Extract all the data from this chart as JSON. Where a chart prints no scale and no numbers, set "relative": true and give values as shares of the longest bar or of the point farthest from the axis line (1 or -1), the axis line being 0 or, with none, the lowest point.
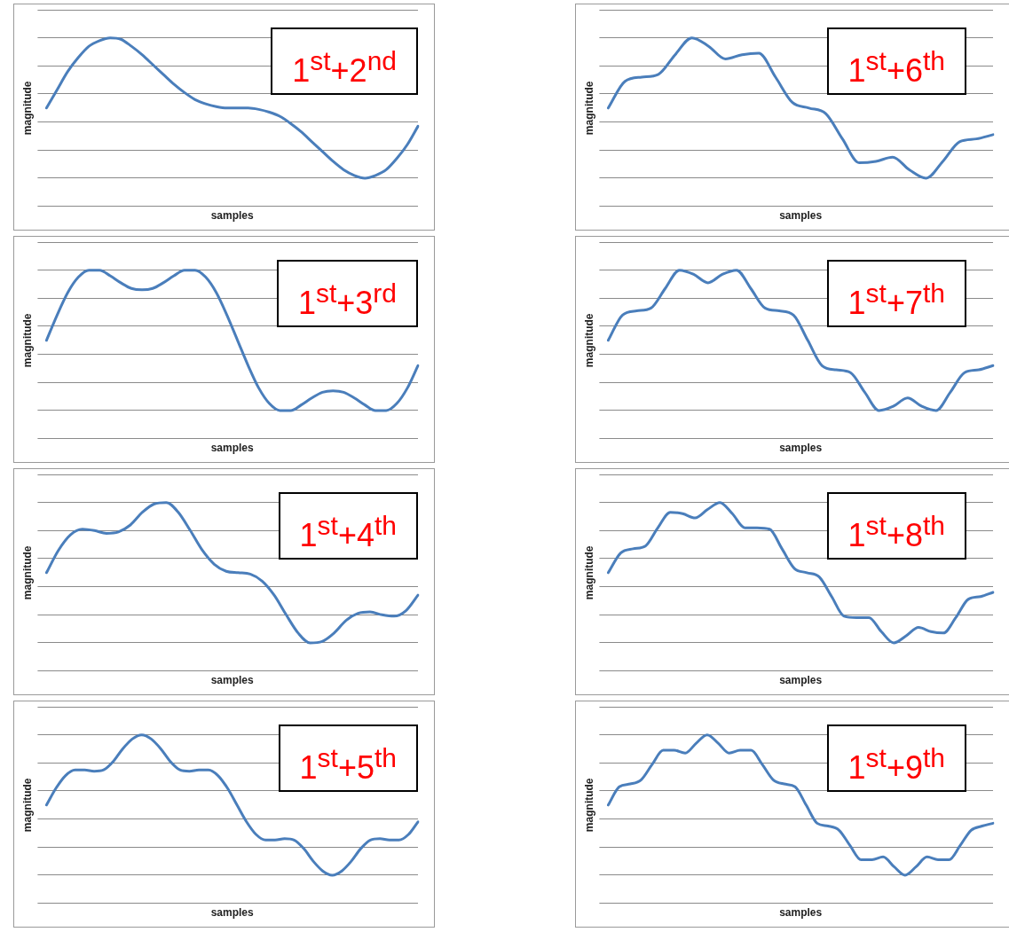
{
  "chart_data": [
    {
      "type": "line",
      "title": "1$^{st}$+2$^{nd}$",
      "xlabel": "samples",
      "ylabel": "magnitude",
      "relative": true,
      "grid": "y",
      "marker": "none",
      "color": "#4a7ebb",
      "categories": [
        null,
        null,
        null,
        null,
        null,
        null,
        null,
        null,
        null,
        null,
        null,
        null,
        null,
        null,
        null,
        null,
        null,
        null,
        null,
        null,
        null,
        null,
        null,
        null,
        null,
        null,
        null,
        null,
        null,
        null,
        null,
        null,
        null,
        null,
        null,
        null
      ],
      "values": [
        0.5,
        0.63,
        0.76,
        0.86,
        0.94,
        0.98,
        1,
        0.99,
        0.94,
        0.88,
        0.81,
        0.74,
        0.67,
        0.61,
        0.56,
        0.53,
        0.51,
        0.5,
        0.5,
        0.5,
        0.49,
        0.47,
        0.44,
        0.39,
        0.33,
        0.26,
        0.19,
        0.12,
        0.06,
        0.02,
        0,
        0.02,
        0.06,
        0.14,
        0.24,
        0.37
      ]
    },
    {
      "type": "line",
      "title": "1$^{st}$+6$^{th}$",
      "xlabel": "samples",
      "ylabel": "magnitude",
      "relative": true,
      "grid": "y",
      "marker": "none",
      "color": "#4a7ebb",
      "categories": [
        null,
        null,
        null,
        null,
        null,
        null,
        null,
        null,
        null,
        null,
        null,
        null,
        null,
        null,
        null,
        null,
        null,
        null,
        null,
        null,
        null,
        null,
        null,
        null
      ],
      "values": [
        0.5,
        0.69,
        0.72,
        0.74,
        0.88,
        1,
        0.94,
        0.85,
        0.88,
        0.89,
        0.72,
        0.54,
        0.5,
        0.46,
        0.28,
        0.11,
        0.12,
        0.15,
        0.06,
        0,
        0.12,
        0.26,
        0.28,
        0.31
      ]
    },
    {
      "type": "line",
      "title": "1$^{st}$+3$^{rd}$",
      "xlabel": "samples",
      "ylabel": "magnitude",
      "relative": true,
      "grid": "y",
      "marker": "none",
      "color": "#4a7ebb",
      "categories": [
        null,
        null,
        null,
        null,
        null,
        null,
        null,
        null,
        null,
        null,
        null,
        null,
        null,
        null,
        null,
        null,
        null,
        null,
        null,
        null,
        null,
        null,
        null,
        null,
        null,
        null,
        null,
        null,
        null,
        null,
        null,
        null,
        null,
        null,
        null,
        null
      ],
      "values": [
        0.5,
        0.68,
        0.84,
        0.95,
        1,
        1,
        0.96,
        0.91,
        0.87,
        0.86,
        0.87,
        0.91,
        0.96,
        1,
        1,
        0.95,
        0.84,
        0.68,
        0.5,
        0.32,
        0.16,
        0.05,
        0,
        0,
        0.04,
        0.09,
        0.13,
        0.14,
        0.13,
        0.09,
        0.04,
        0,
        0,
        0.05,
        0.16,
        0.32
      ]
    },
    {
      "type": "line",
      "title": "1$^{st}$+7$^{th}$",
      "xlabel": "samples",
      "ylabel": "magnitude",
      "relative": true,
      "grid": "y",
      "marker": "none",
      "color": "#4a7ebb",
      "categories": [
        null,
        null,
        null,
        null,
        null,
        null,
        null,
        null,
        null,
        null,
        null,
        null,
        null,
        null,
        null,
        null,
        null,
        null,
        null,
        null,
        null,
        null,
        null,
        null,
        null,
        null,
        null,
        null
      ],
      "values": [
        0.5,
        0.68,
        0.71,
        0.73,
        0.87,
        1,
        0.97,
        0.91,
        0.97,
        1,
        0.87,
        0.73,
        0.71,
        0.68,
        0.5,
        0.32,
        0.29,
        0.27,
        0.13,
        0,
        0.03,
        0.09,
        0.03,
        0,
        0.13,
        0.27,
        0.29,
        0.32
      ]
    },
    {
      "type": "line",
      "title": "1$^{st}$+4$^{th}$",
      "xlabel": "samples",
      "ylabel": "magnitude",
      "relative": true,
      "grid": "y",
      "marker": "none",
      "color": "#4a7ebb",
      "categories": [
        null,
        null,
        null,
        null,
        null,
        null,
        null,
        null,
        null,
        null,
        null,
        null,
        null,
        null,
        null,
        null,
        null,
        null,
        null,
        null,
        null,
        null,
        null,
        null,
        null,
        null,
        null,
        null,
        null,
        null,
        null,
        null
      ],
      "values": [
        0.5,
        0.66,
        0.77,
        0.81,
        0.8,
        0.78,
        0.79,
        0.84,
        0.93,
        0.99,
        1,
        0.93,
        0.8,
        0.66,
        0.56,
        0.51,
        0.5,
        0.49,
        0.44,
        0.34,
        0.2,
        0.07,
        0,
        0.01,
        0.07,
        0.16,
        0.21,
        0.22,
        0.2,
        0.19,
        0.23,
        0.34
      ]
    },
    {
      "type": "line",
      "title": "1$^{st}$+8$^{th}$",
      "xlabel": "samples",
      "ylabel": "magnitude",
      "relative": true,
      "grid": "y",
      "marker": "none",
      "color": "#4a7ebb",
      "categories": [
        null,
        null,
        null,
        null,
        null,
        null,
        null,
        null,
        null,
        null,
        null,
        null,
        null,
        null,
        null,
        null,
        null,
        null,
        null,
        null,
        null,
        null,
        null,
        null,
        null,
        null,
        null,
        null,
        null,
        null,
        null,
        null
      ],
      "values": [
        0.5,
        0.64,
        0.67,
        0.69,
        0.82,
        0.93,
        0.92,
        0.89,
        0.95,
        1,
        0.92,
        0.82,
        0.82,
        0.81,
        0.67,
        0.53,
        0.5,
        0.47,
        0.33,
        0.19,
        0.18,
        0.18,
        0.08,
        0,
        0.05,
        0.11,
        0.08,
        0.07,
        0.18,
        0.31,
        0.33,
        0.36
      ]
    },
    {
      "type": "line",
      "title": "1$^{st}$+5$^{th}$",
      "xlabel": "samples",
      "ylabel": "magnitude",
      "relative": true,
      "grid": "y",
      "marker": "none",
      "color": "#4a7ebb",
      "categories": [
        null,
        null,
        null,
        null,
        null,
        null,
        null,
        null,
        null,
        null,
        null,
        null,
        null,
        null,
        null,
        null,
        null,
        null,
        null,
        null,
        null,
        null,
        null,
        null,
        null,
        null,
        null,
        null,
        null,
        null,
        null,
        null,
        null,
        null,
        null,
        null,
        null,
        null,
        null,
        null
      ],
      "values": [
        0.5,
        0.62,
        0.71,
        0.75,
        0.75,
        0.74,
        0.75,
        0.81,
        0.9,
        0.97,
        1,
        0.97,
        0.9,
        0.81,
        0.75,
        0.74,
        0.75,
        0.75,
        0.71,
        0.62,
        0.5,
        0.38,
        0.29,
        0.25,
        0.25,
        0.26,
        0.25,
        0.19,
        0.1,
        0.03,
        0,
        0.03,
        0.1,
        0.19,
        0.25,
        0.26,
        0.25,
        0.25,
        0.29,
        0.38
      ]
    },
    {
      "type": "line",
      "title": "1$^{st}$+9$^{th}$",
      "xlabel": "samples",
      "ylabel": "magnitude",
      "relative": true,
      "grid": "y",
      "marker": "none",
      "color": "#4a7ebb",
      "categories": [
        null,
        null,
        null,
        null,
        null,
        null,
        null,
        null,
        null,
        null,
        null,
        null,
        null,
        null,
        null,
        null,
        null,
        null,
        null,
        null,
        null,
        null,
        null,
        null,
        null,
        null,
        null,
        null,
        null,
        null,
        null,
        null,
        null,
        null,
        null,
        null
      ],
      "values": [
        0.5,
        0.63,
        0.65,
        0.68,
        0.79,
        0.89,
        0.89,
        0.87,
        0.94,
        1,
        0.94,
        0.87,
        0.89,
        0.89,
        0.79,
        0.68,
        0.65,
        0.63,
        0.5,
        0.37,
        0.35,
        0.32,
        0.21,
        0.11,
        0.11,
        0.13,
        0.06,
        0,
        0.06,
        0.13,
        0.11,
        0.11,
        0.21,
        0.32,
        0.35,
        0.37
      ]
    }
  ]
}
